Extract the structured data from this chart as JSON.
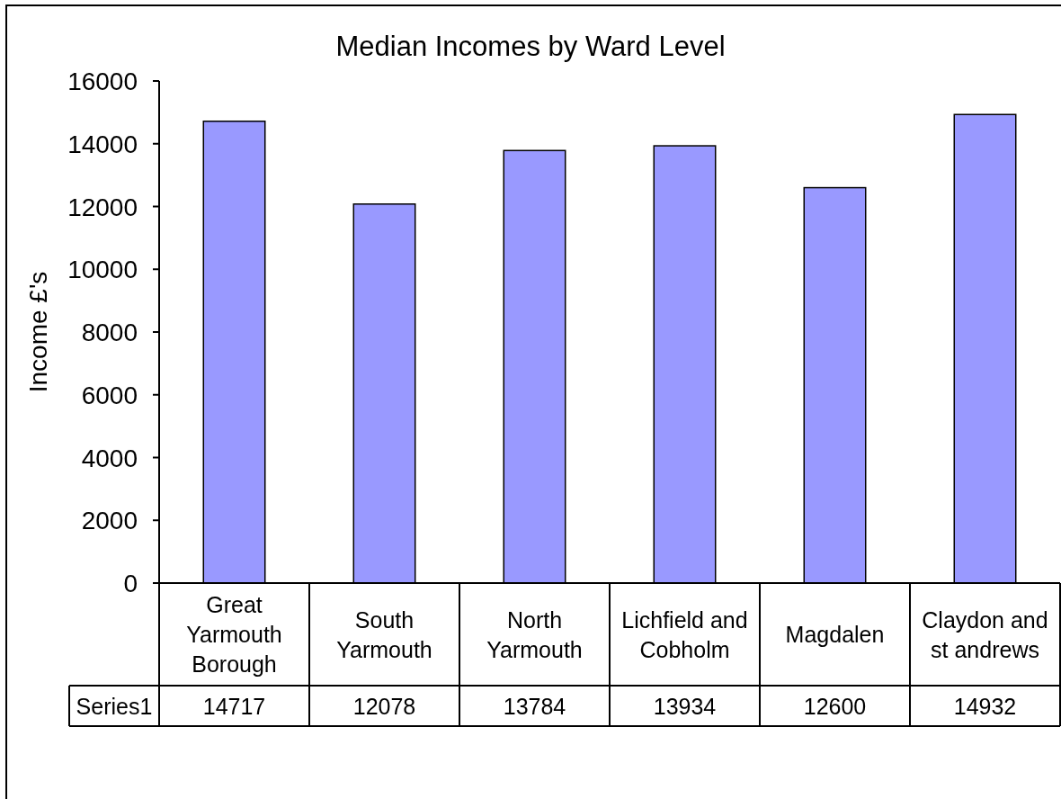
{
  "chart_data": {
    "type": "bar",
    "title": "Median Incomes by Ward Level",
    "ylabel": "Income £'s",
    "categories": [
      "Great Yarmouth Borough",
      "South Yarmouth",
      "North Yarmouth",
      "Lichfield and Cobholm",
      "Magdalen",
      "Claydon and st andrews"
    ],
    "series": [
      {
        "name": "Series1",
        "color": "#9999ff",
        "values": [
          14717,
          12078,
          13784,
          13934,
          12600,
          14932
        ]
      }
    ],
    "ylim": [
      0,
      16000
    ],
    "yticks": [
      0,
      2000,
      4000,
      6000,
      8000,
      10000,
      12000,
      14000,
      16000
    ],
    "data_labels": true
  }
}
